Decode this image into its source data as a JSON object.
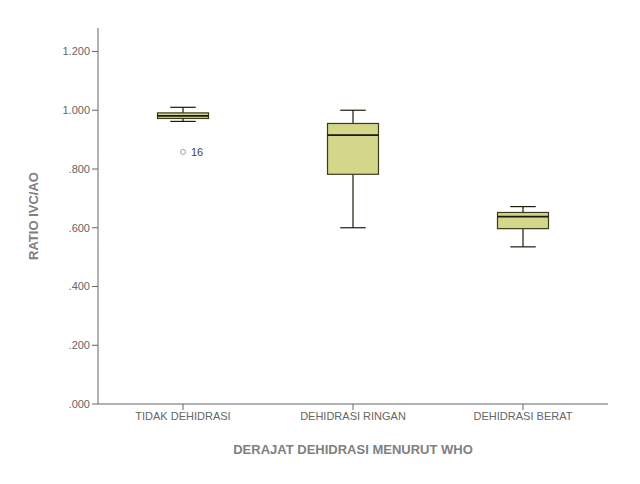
{
  "chart_data": {
    "type": "box",
    "xlabel": "DERAJAT DEHIDRASI MENURUT WHO",
    "ylabel": "RATIO IVC/AO",
    "categories": [
      "TIDAK DEHIDRASI",
      "DEHIDRASI RINGAN",
      "DEHIDRASI BERAT"
    ],
    "boxes": [
      {
        "whislo": 0.962,
        "q1": 0.972,
        "med": 0.981,
        "q3": 0.991,
        "whishi": 1.01,
        "fliers": [
          0.858
        ]
      },
      {
        "whislo": 0.6,
        "q1": 0.782,
        "med": 0.915,
        "q3": 0.955,
        "whishi": 1.0,
        "fliers": []
      },
      {
        "whislo": 0.535,
        "q1": 0.597,
        "med": 0.638,
        "q3": 0.652,
        "whishi": 0.672,
        "fliers": []
      }
    ],
    "color": "#d4d68a",
    "ylim": [
      0.0,
      1.28
    ],
    "yticks": [
      {
        "value": 0.0,
        "label": ".000"
      },
      {
        "value": 0.2,
        "label": ".200"
      },
      {
        "value": 0.4,
        "label": ".400"
      },
      {
        "value": 0.6,
        "label": ".600"
      },
      {
        "value": 0.8,
        "label": ".800"
      },
      {
        "value": 1.0,
        "label": "1.000"
      },
      {
        "value": 1.2,
        "label": "1.200"
      }
    ],
    "grid": false,
    "annotations": [
      {
        "text": "16",
        "category": "TIDAK DEHIDRASI",
        "y": 0.858
      }
    ]
  }
}
